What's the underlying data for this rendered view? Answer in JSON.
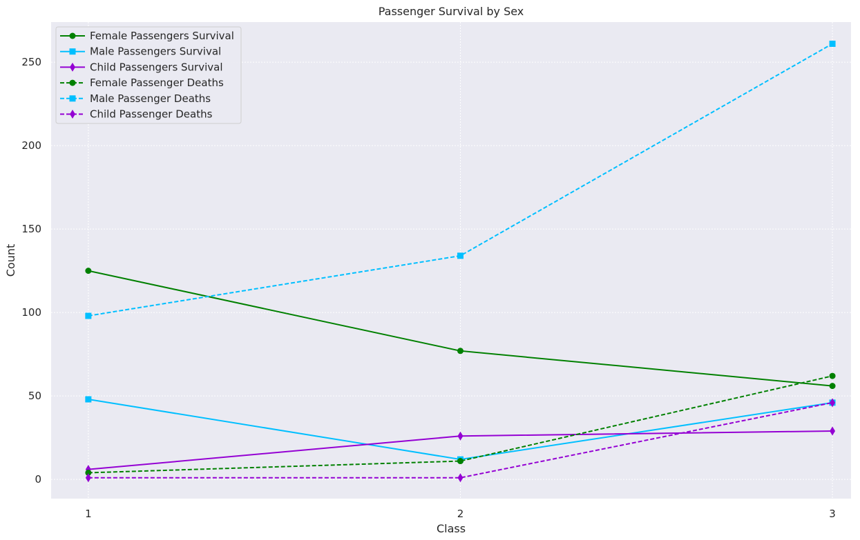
{
  "chart_data": {
    "type": "line",
    "title": "Passenger Survival by Sex",
    "xlabel": "Class",
    "ylabel": "Count",
    "x": [
      1,
      2,
      3
    ],
    "xticks": [
      "1",
      "2",
      "3"
    ],
    "yticks": [
      "0",
      "50",
      "100",
      "150",
      "200",
      "250"
    ],
    "xlim": [
      0.9,
      3.05
    ],
    "ylim": [
      -11.5,
      274
    ],
    "grid": true,
    "legend_position": "top-left",
    "background_color": "#eaeaf2",
    "series": [
      {
        "name": "Female Passengers Survival",
        "values": [
          125,
          77,
          56
        ],
        "color": "#008000",
        "dash": "solid",
        "marker": "circle"
      },
      {
        "name": "Male Passengers Survival",
        "values": [
          48,
          12,
          46
        ],
        "color": "#00bfff",
        "dash": "solid",
        "marker": "square"
      },
      {
        "name": "Child Passengers Survival",
        "values": [
          6,
          26,
          29
        ],
        "color": "#9400d3",
        "dash": "solid",
        "marker": "diamond"
      },
      {
        "name": "Female Passenger Deaths",
        "values": [
          4,
          11,
          62
        ],
        "color": "#008000",
        "dash": "dashed",
        "marker": "circle"
      },
      {
        "name": "Male Passenger Deaths",
        "values": [
          98,
          134,
          261
        ],
        "color": "#00bfff",
        "dash": "dashed",
        "marker": "square"
      },
      {
        "name": "Child Passenger Deaths",
        "values": [
          1,
          1,
          46
        ],
        "color": "#9400d3",
        "dash": "dashed",
        "marker": "diamond"
      }
    ]
  }
}
